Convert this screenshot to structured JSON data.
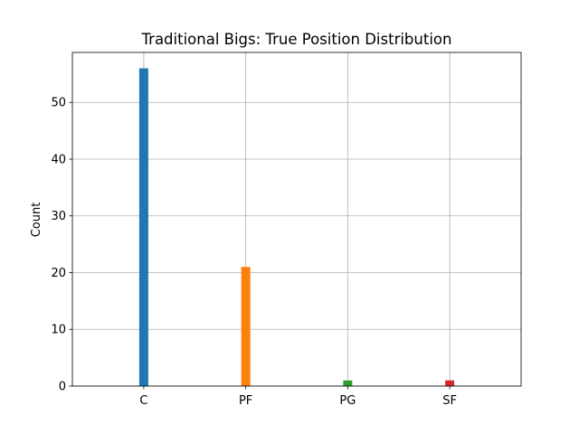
{
  "chart_data": {
    "type": "bar",
    "title": "Traditional Bigs: True Position Distribution",
    "xlabel": "",
    "ylabel": "Count",
    "categories": [
      "C",
      "PF",
      "PG",
      "SF"
    ],
    "values": [
      56,
      21,
      1,
      1
    ],
    "colors": [
      "#1f77b4",
      "#ff7f0e",
      "#2ca02c",
      "#d62728"
    ],
    "ylim": [
      0,
      58.8
    ],
    "yticks": [
      0,
      10,
      20,
      30,
      40,
      50
    ],
    "grid": true
  }
}
